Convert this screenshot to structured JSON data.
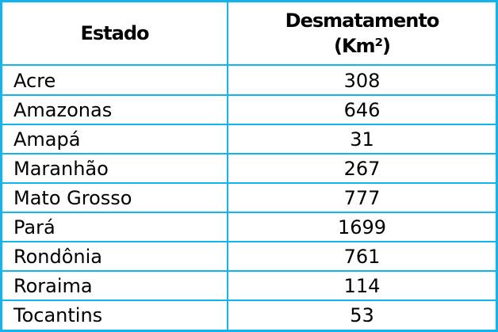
{
  "header": {
    "state": "Estado",
    "deforestation": "Desmatamento",
    "unit": "(Km²)"
  },
  "table": {
    "rows": [
      [
        "Acre",
        "308"
      ],
      [
        "Amazonas",
        "646"
      ],
      [
        "Amapá",
        "31"
      ],
      [
        "Maranhão",
        "267"
      ],
      [
        "Mato Grosso",
        "777"
      ],
      [
        "Pará",
        "1699"
      ],
      [
        "Rondônia",
        "761"
      ],
      [
        "Roraima",
        "114"
      ],
      [
        "Tocantins",
        "53"
      ]
    ]
  }
}
